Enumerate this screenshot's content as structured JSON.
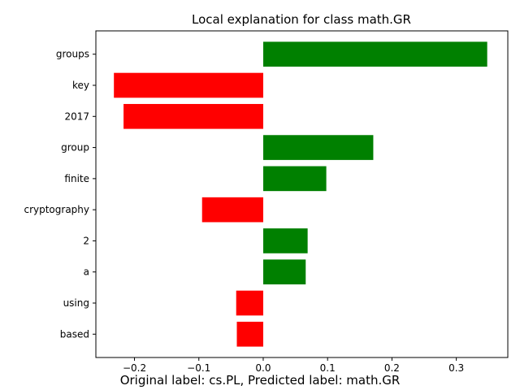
{
  "chart_data": {
    "type": "bar",
    "orientation": "horizontal",
    "title": "Local explanation for class math.GR",
    "xlabel": "",
    "ylabel": "",
    "categories": [
      "groups",
      "key",
      "2017",
      "group",
      "finite",
      "cryptography",
      "2",
      "a",
      "using",
      "based"
    ],
    "values": [
      0.348,
      -0.232,
      -0.217,
      0.171,
      0.098,
      -0.095,
      0.069,
      0.066,
      -0.042,
      -0.041
    ],
    "xlim": [
      -0.26,
      0.38
    ],
    "xticks": [
      -0.2,
      -0.1,
      0.0,
      0.1,
      0.2,
      0.3
    ],
    "xtick_labels": [
      "−0.2",
      "−0.1",
      "0.0",
      "0.1",
      "0.2",
      "0.3"
    ],
    "colors": {
      "positive": "#008000",
      "negative": "#ff0000"
    },
    "grid": false,
    "legend": "none"
  },
  "caption": "Original label: cs.PL, Predicted label: math.GR"
}
